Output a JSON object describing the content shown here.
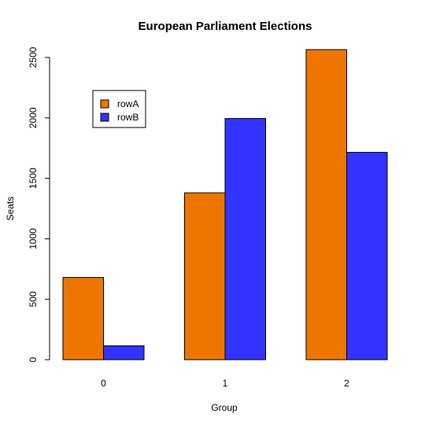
{
  "chart_data": {
    "type": "bar",
    "title": "European Parliament Elections",
    "xlabel": "Group",
    "ylabel": "Seats",
    "categories": [
      "0",
      "1",
      "2"
    ],
    "series": [
      {
        "name": "rowA",
        "color": "#EE7600",
        "values": [
          680,
          1380,
          2565
        ]
      },
      {
        "name": "rowB",
        "color": "#3333FF",
        "values": [
          115,
          1995,
          1715
        ]
      }
    ],
    "ylim": [
      0,
      2500
    ],
    "yticks": [
      0,
      500,
      1000,
      1500,
      2000,
      2500
    ],
    "grid": false,
    "legend_position": "top-left"
  }
}
